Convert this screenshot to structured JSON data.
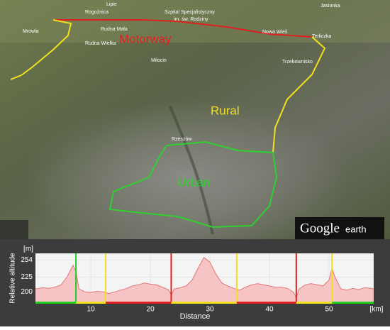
{
  "map": {
    "places": [
      "Lipie",
      "Rogoźnica",
      "Szpital Specjalistyczny",
      "im. św. Rodziny",
      "Jasionka",
      "Mrowla",
      "Rudna Mała",
      "Rudna Wielka",
      "Nowa Wieś",
      "Terliczka",
      "Miłocin",
      "Trzebownisko",
      "Rzeszów"
    ],
    "route_labels": {
      "motorway": "Motorway",
      "rural": "Rural",
      "urban": "Urban"
    },
    "logo": {
      "brand": "Google",
      "product": "earth"
    }
  },
  "chart_data": {
    "type": "area",
    "x_label": "Distance",
    "x_unit": "[km]",
    "y_label": "Relative altitude",
    "y_unit": "[m]",
    "x": [
      0.7,
      2,
      3,
      4,
      5,
      6,
      7,
      7.5,
      8,
      9,
      10,
      11,
      12,
      12.5,
      13,
      14,
      15,
      16,
      17,
      18,
      19,
      20,
      21,
      22,
      23,
      23.5,
      24,
      25,
      26,
      27,
      28,
      29,
      30,
      31,
      32,
      33,
      34,
      35,
      36,
      37,
      38,
      39,
      40,
      41,
      42,
      43,
      44,
      44.5,
      45,
      46,
      47,
      48,
      49,
      50,
      50.5,
      51,
      52,
      53,
      54,
      55,
      56,
      57,
      57.5
    ],
    "values": [
      205,
      207,
      206,
      208,
      212,
      225,
      245,
      235,
      205,
      200,
      199,
      201,
      200,
      199,
      197,
      200,
      203,
      206,
      210,
      212,
      215,
      213,
      212,
      208,
      204,
      195,
      205,
      207,
      210,
      220,
      240,
      258,
      250,
      230,
      215,
      210,
      206,
      203,
      208,
      212,
      214,
      212,
      210,
      208,
      208,
      206,
      200,
      190,
      205,
      212,
      214,
      212,
      210,
      220,
      240,
      225,
      205,
      203,
      206,
      204,
      207,
      206,
      205
    ],
    "color": "#e07878",
    "fill": "#f6c4c4",
    "xlim": [
      0.7,
      57.5
    ],
    "ylim": [
      180,
      265
    ],
    "xticks": [
      10,
      20,
      30,
      40,
      50
    ],
    "yticks": [
      200,
      225,
      254
    ],
    "boundaries": [
      7.5,
      12.5,
      23.5,
      34.5,
      44.5,
      50.5
    ],
    "boundary_colors": [
      "#22cc22",
      "#f0e020",
      "#e02020",
      "#f0e020",
      "#e02020",
      "#f0e020"
    ],
    "segment_starts": [
      0.7,
      7.5,
      12.5,
      23.5,
      34.5,
      44.5,
      50.5
    ],
    "segment_ends": [
      7.5,
      12.5,
      23.5,
      34.5,
      44.5,
      50.5,
      57.5
    ],
    "segment_colors": [
      "#22cc22",
      "#f0e020",
      "#e02020",
      "#f0e020",
      "#e02020",
      "#f0e020",
      "#22cc22"
    ]
  }
}
